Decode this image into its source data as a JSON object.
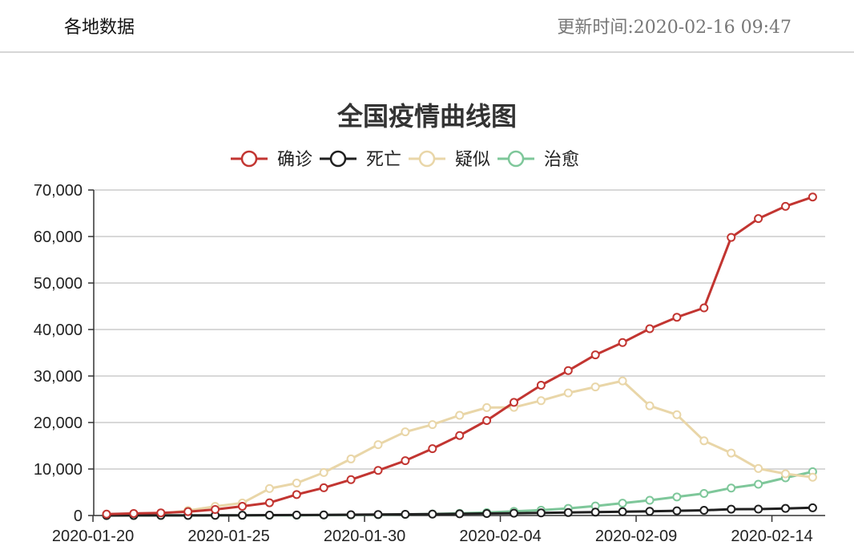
{
  "header": {
    "region_label": "各地数据",
    "update_prefix": "更新时间:",
    "update_time": "2020-02-16 09:47"
  },
  "chart_data": {
    "type": "line",
    "title": "全国疫情曲线图",
    "xlabel": "",
    "ylabel": "",
    "ylim": [
      0,
      70000
    ],
    "yticks": [
      0,
      10000,
      20000,
      30000,
      40000,
      50000,
      60000,
      70000
    ],
    "ytick_labels": [
      "0",
      "10,000",
      "20,000",
      "30,000",
      "40,000",
      "50,000",
      "60,000",
      "70,000"
    ],
    "xtick_labels": [
      "2020-01-20",
      "2020-01-25",
      "2020-01-30",
      "2020-02-04",
      "2020-02-09",
      "2020-02-14"
    ],
    "grid": true,
    "legend_position": "top-center",
    "x": [
      "2020-01-20",
      "2020-01-21",
      "2020-01-22",
      "2020-01-23",
      "2020-01-24",
      "2020-01-25",
      "2020-01-26",
      "2020-01-27",
      "2020-01-28",
      "2020-01-29",
      "2020-01-30",
      "2020-01-31",
      "2020-02-01",
      "2020-02-02",
      "2020-02-03",
      "2020-02-04",
      "2020-02-05",
      "2020-02-06",
      "2020-02-07",
      "2020-02-08",
      "2020-02-09",
      "2020-02-10",
      "2020-02-11",
      "2020-02-12",
      "2020-02-13",
      "2020-02-14",
      "2020-02-15"
    ],
    "series": [
      {
        "name": "确诊",
        "color": "#c23531",
        "values": [
          291,
          440,
          571,
          830,
          1287,
          1975,
          2744,
          4515,
          5974,
          7711,
          9692,
          11791,
          14380,
          17205,
          20438,
          24324,
          28018,
          31161,
          34546,
          37198,
          40171,
          42638,
          44653,
          59804,
          63851,
          66492,
          68500
        ]
      },
      {
        "name": "死亡",
        "color": "#1f1f1f",
        "values": [
          6,
          9,
          17,
          25,
          41,
          56,
          80,
          106,
          132,
          170,
          213,
          259,
          304,
          361,
          425,
          490,
          563,
          636,
          722,
          811,
          908,
          1016,
          1113,
          1367,
          1380,
          1523,
          1665
        ]
      },
      {
        "name": "疑似",
        "color": "#e9d6a8",
        "values": [
          54,
          37,
          393,
          1072,
          1965,
          2684,
          5794,
          6973,
          9239,
          12167,
          15238,
          17988,
          19544,
          21558,
          23214,
          23260,
          24702,
          26359,
          27657,
          28942,
          23589,
          21675,
          16067,
          13435,
          10109,
          8969,
          8228
        ]
      },
      {
        "name": "治愈",
        "color": "#7ec79a",
        "values": [
          25,
          25,
          28,
          34,
          38,
          49,
          51,
          60,
          103,
          124,
          171,
          243,
          328,
          475,
          632,
          892,
          1153,
          1540,
          2050,
          2649,
          3281,
          3996,
          4740,
          5911,
          6723,
          8096,
          9419
        ]
      }
    ]
  }
}
